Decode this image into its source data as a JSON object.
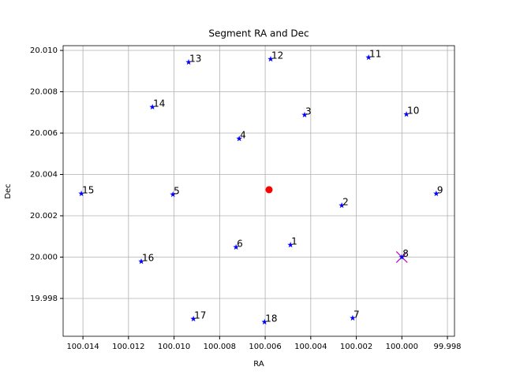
{
  "chart_data": {
    "type": "scatter",
    "title": "Segment RA and Dec",
    "x_label": "RA",
    "y_label": "Dec",
    "points": {
      "color": "#0000ff",
      "labels": [
        "1",
        "2",
        "3",
        "4",
        "5",
        "6",
        "7",
        "8",
        "9",
        "10",
        "11",
        "12",
        "13",
        "14",
        "15",
        "16",
        "17",
        "18"
      ],
      "x": [
        100.00489,
        100.00264,
        100.00427,
        100.00714,
        100.01005,
        100.00728,
        100.00216,
        100.0,
        99.99849,
        99.9998,
        100.00146,
        100.00576,
        100.00936,
        100.01095,
        100.01407,
        100.01144,
        100.00915,
        100.00603
      ],
      "y": [
        20.00059,
        20.0025,
        20.00688,
        20.00573,
        20.00303,
        20.00048,
        19.99705,
        20.0,
        20.00307,
        20.00691,
        20.00966,
        20.00958,
        20.00943,
        20.00726,
        20.00307,
        19.99979,
        19.99701,
        19.99686
      ]
    },
    "center": {
      "x": 100.00583,
      "y": 20.00326,
      "color": "#ff0000"
    },
    "target": {
      "x": 100.0,
      "y": 20.0,
      "color": "#bf00bf"
    },
    "xlim": [
      100.01487,
      99.99769
    ],
    "ylim": [
      19.99617,
      20.01023
    ],
    "xticks": [
      100.014,
      100.012,
      {
        "value": 100.01,
        "label": "100.010"
      },
      100.008,
      100.006,
      100.004,
      100.002,
      {
        "value": 100.0,
        "label": "100.000"
      },
      99.998
    ],
    "yticks": [
      19.998,
      {
        "value": 20.0,
        "label": "20.000"
      },
      20.002,
      20.004,
      20.006,
      20.008,
      {
        "value": 20.01,
        "label": "20.010"
      }
    ],
    "grid": true
  }
}
